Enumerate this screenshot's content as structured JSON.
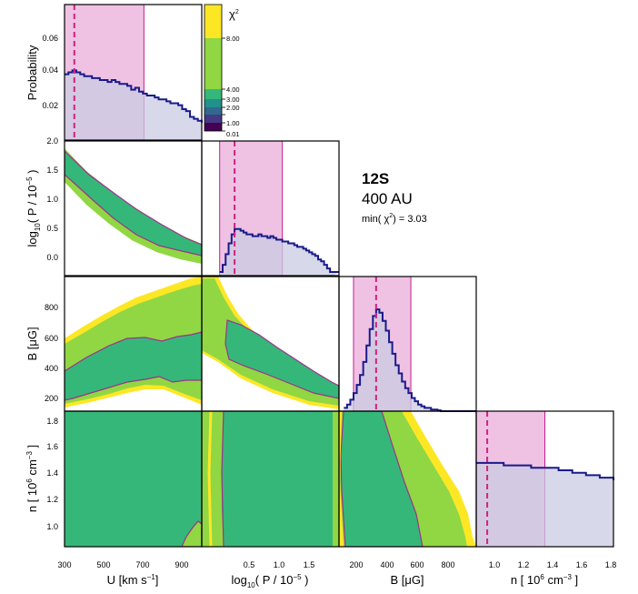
{
  "chart_data": {
    "type": "corner-plot",
    "annotation": {
      "title": "12S",
      "subtitle": "400 AU",
      "chi2_label": "min(",
      "chi2_symbol": "χ",
      "chi2_sup": "2",
      "chi2_value": ") = 3.03"
    },
    "colorbar": {
      "label_symbol": "χ",
      "label_sup": "2",
      "ticks": [
        "8.00",
        "4.00",
        "3.00",
        "2.00",
        "1.00",
        "0.01"
      ],
      "colors": [
        "#fde725",
        "#90d743",
        "#35b779",
        "#21918c",
        "#31688e",
        "#443983",
        "#440154"
      ]
    },
    "colors": {
      "hist_line": "#1a1a8a",
      "hist_fill": "#c9cbe3",
      "band_fill": "#e8a8d8",
      "band_edge": "#c21f8f",
      "median": "#d3217d",
      "contour_edge": "#a0308a"
    },
    "axes": {
      "U": {
        "label": "U [km s",
        "label_sup": "−1",
        "label_end": "]",
        "range": [
          300,
          1000
        ],
        "ticks": [
          "300",
          "500",
          "700",
          "900"
        ]
      },
      "P": {
        "label": "log",
        "label_sub": "10",
        "label_mid": "( P / 10",
        "label_sup": "−5",
        "label_end": " )",
        "range": [
          -0.3,
          2.0
        ],
        "ticks_x": [
          "0.5",
          "1.0",
          "1.5"
        ],
        "ticks_y": [
          "0.0",
          "0.5",
          "1.0",
          "1.5",
          "2.0"
        ]
      },
      "B": {
        "label": "B [μG]",
        "range": [
          150,
          1000
        ],
        "ticks": [
          "200",
          "400",
          "600",
          "800"
        ]
      },
      "n": {
        "label": "n [ 10",
        "label_sup": "6",
        "label_end": " cm",
        "label_sup2": "−3",
        "label_end2": " ]",
        "range": [
          0.85,
          1.85
        ],
        "ticks": [
          "1.0",
          "1.2",
          "1.4",
          "1.6",
          "1.8"
        ]
      },
      "prob": {
        "label": "Probability",
        "range": [
          0.01,
          0.08
        ],
        "ticks": [
          "0.02",
          "0.04",
          "0.06"
        ]
      }
    },
    "marginals": {
      "U": {
        "median": 350,
        "band": [
          300,
          705
        ],
        "x": [
          300,
          320,
          340,
          360,
          380,
          400,
          420,
          440,
          460,
          480,
          500,
          520,
          540,
          560,
          580,
          600,
          620,
          640,
          660,
          680,
          700,
          720,
          740,
          760,
          780,
          800,
          820,
          840,
          860,
          880,
          900,
          920,
          940,
          960,
          980,
          1000
        ],
        "y": [
          0.044,
          0.045,
          0.046,
          0.045,
          0.044,
          0.043,
          0.043,
          0.042,
          0.042,
          0.041,
          0.041,
          0.04,
          0.041,
          0.04,
          0.039,
          0.039,
          0.038,
          0.036,
          0.037,
          0.035,
          0.034,
          0.033,
          0.033,
          0.032,
          0.031,
          0.031,
          0.03,
          0.029,
          0.029,
          0.028,
          0.026,
          0.025,
          0.022,
          0.021,
          0.02,
          0.019
        ]
      },
      "P": {
        "median": 0.25,
        "band": [
          0.0,
          1.05
        ],
        "x": [
          0.0,
          0.05,
          0.1,
          0.15,
          0.2,
          0.25,
          0.3,
          0.35,
          0.4,
          0.45,
          0.5,
          0.55,
          0.6,
          0.65,
          0.7,
          0.75,
          0.8,
          0.85,
          0.9,
          0.95,
          1.0,
          1.05,
          1.1,
          1.15,
          1.2,
          1.25,
          1.3,
          1.35,
          1.4,
          1.45,
          1.5,
          1.55,
          1.6,
          1.65,
          1.7,
          1.75,
          1.8,
          1.85
        ],
        "y": [
          0.002,
          0.006,
          0.012,
          0.018,
          0.023,
          0.026,
          0.026,
          0.025,
          0.024,
          0.023,
          0.023,
          0.022,
          0.022,
          0.023,
          0.022,
          0.022,
          0.021,
          0.022,
          0.021,
          0.02,
          0.02,
          0.019,
          0.019,
          0.018,
          0.018,
          0.017,
          0.016,
          0.016,
          0.015,
          0.014,
          0.013,
          0.012,
          0.011,
          0.009,
          0.008,
          0.006,
          0.004,
          0.002
        ]
      },
      "B": {
        "median": 380,
        "band": [
          240,
          595
        ],
        "x": [
          180,
          200,
          220,
          240,
          260,
          280,
          300,
          320,
          340,
          360,
          380,
          400,
          420,
          440,
          460,
          480,
          500,
          520,
          540,
          560,
          580,
          600,
          620,
          640,
          660,
          680,
          700,
          720,
          740,
          760,
          780
        ],
        "y": [
          0.002,
          0.004,
          0.007,
          0.011,
          0.016,
          0.022,
          0.03,
          0.04,
          0.05,
          0.058,
          0.062,
          0.06,
          0.055,
          0.049,
          0.042,
          0.035,
          0.028,
          0.023,
          0.018,
          0.014,
          0.011,
          0.008,
          0.006,
          0.004,
          0.003,
          0.002,
          0.002,
          0.001,
          0.001,
          0.0005,
          0.0
        ]
      },
      "n": {
        "median": 0.93,
        "band": [
          0.85,
          1.35
        ],
        "x": [
          0.85,
          0.95,
          1.05,
          1.15,
          1.25,
          1.35,
          1.45,
          1.55,
          1.65,
          1.75,
          1.85
        ],
        "y": [
          0.034,
          0.034,
          0.033,
          0.033,
          0.032,
          0.032,
          0.031,
          0.03,
          0.029,
          0.028,
          0.027
        ]
      }
    }
  }
}
